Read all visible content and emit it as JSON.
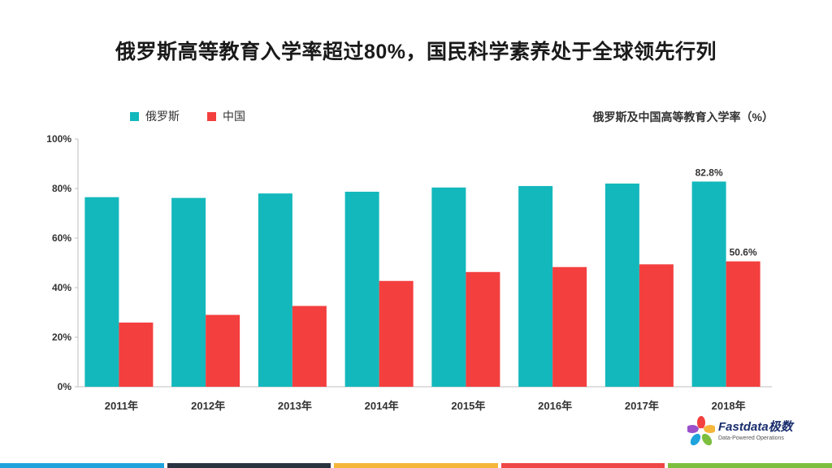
{
  "title": "俄罗斯高等教育入学率超过80%，国民科学素养处于全球领先行列",
  "legend": [
    {
      "label": "俄罗斯",
      "color": "#13b8bc"
    },
    {
      "label": "中国",
      "color": "#f43f3f"
    }
  ],
  "chart_subtitle": "俄罗斯及中国高等教育入学率（%）",
  "chart_data": {
    "type": "bar",
    "title": "俄罗斯及中国高等教育入学率（%）",
    "categories": [
      "2011年",
      "2012年",
      "2013年",
      "2014年",
      "2015年",
      "2016年",
      "2017年",
      "2018年"
    ],
    "series": [
      {
        "name": "俄罗斯",
        "color": "#13b8bc",
        "values": [
          76.5,
          76.2,
          78.0,
          78.7,
          80.4,
          81.0,
          82.0,
          82.8
        ]
      },
      {
        "name": "中国",
        "color": "#f43f3f",
        "values": [
          25.9,
          29.0,
          32.6,
          42.7,
          46.3,
          48.3,
          49.4,
          50.6
        ]
      }
    ],
    "data_labels": [
      {
        "series": 0,
        "index": 7,
        "text": "82.8%"
      },
      {
        "series": 1,
        "index": 7,
        "text": "50.6%"
      }
    ],
    "yticks": [
      "0%",
      "20%",
      "40%",
      "60%",
      "80%",
      "100%"
    ],
    "ylim": [
      0,
      100
    ],
    "grid": false,
    "legend_position": "top-left"
  },
  "logo": {
    "name": "Fastdata极数",
    "tagline": "Data-Powered Operations"
  },
  "bottom_bar_colors": [
    "#1fa3dc",
    "#2a3340",
    "#f5b63a",
    "#ef4646",
    "#7cbf3f"
  ]
}
